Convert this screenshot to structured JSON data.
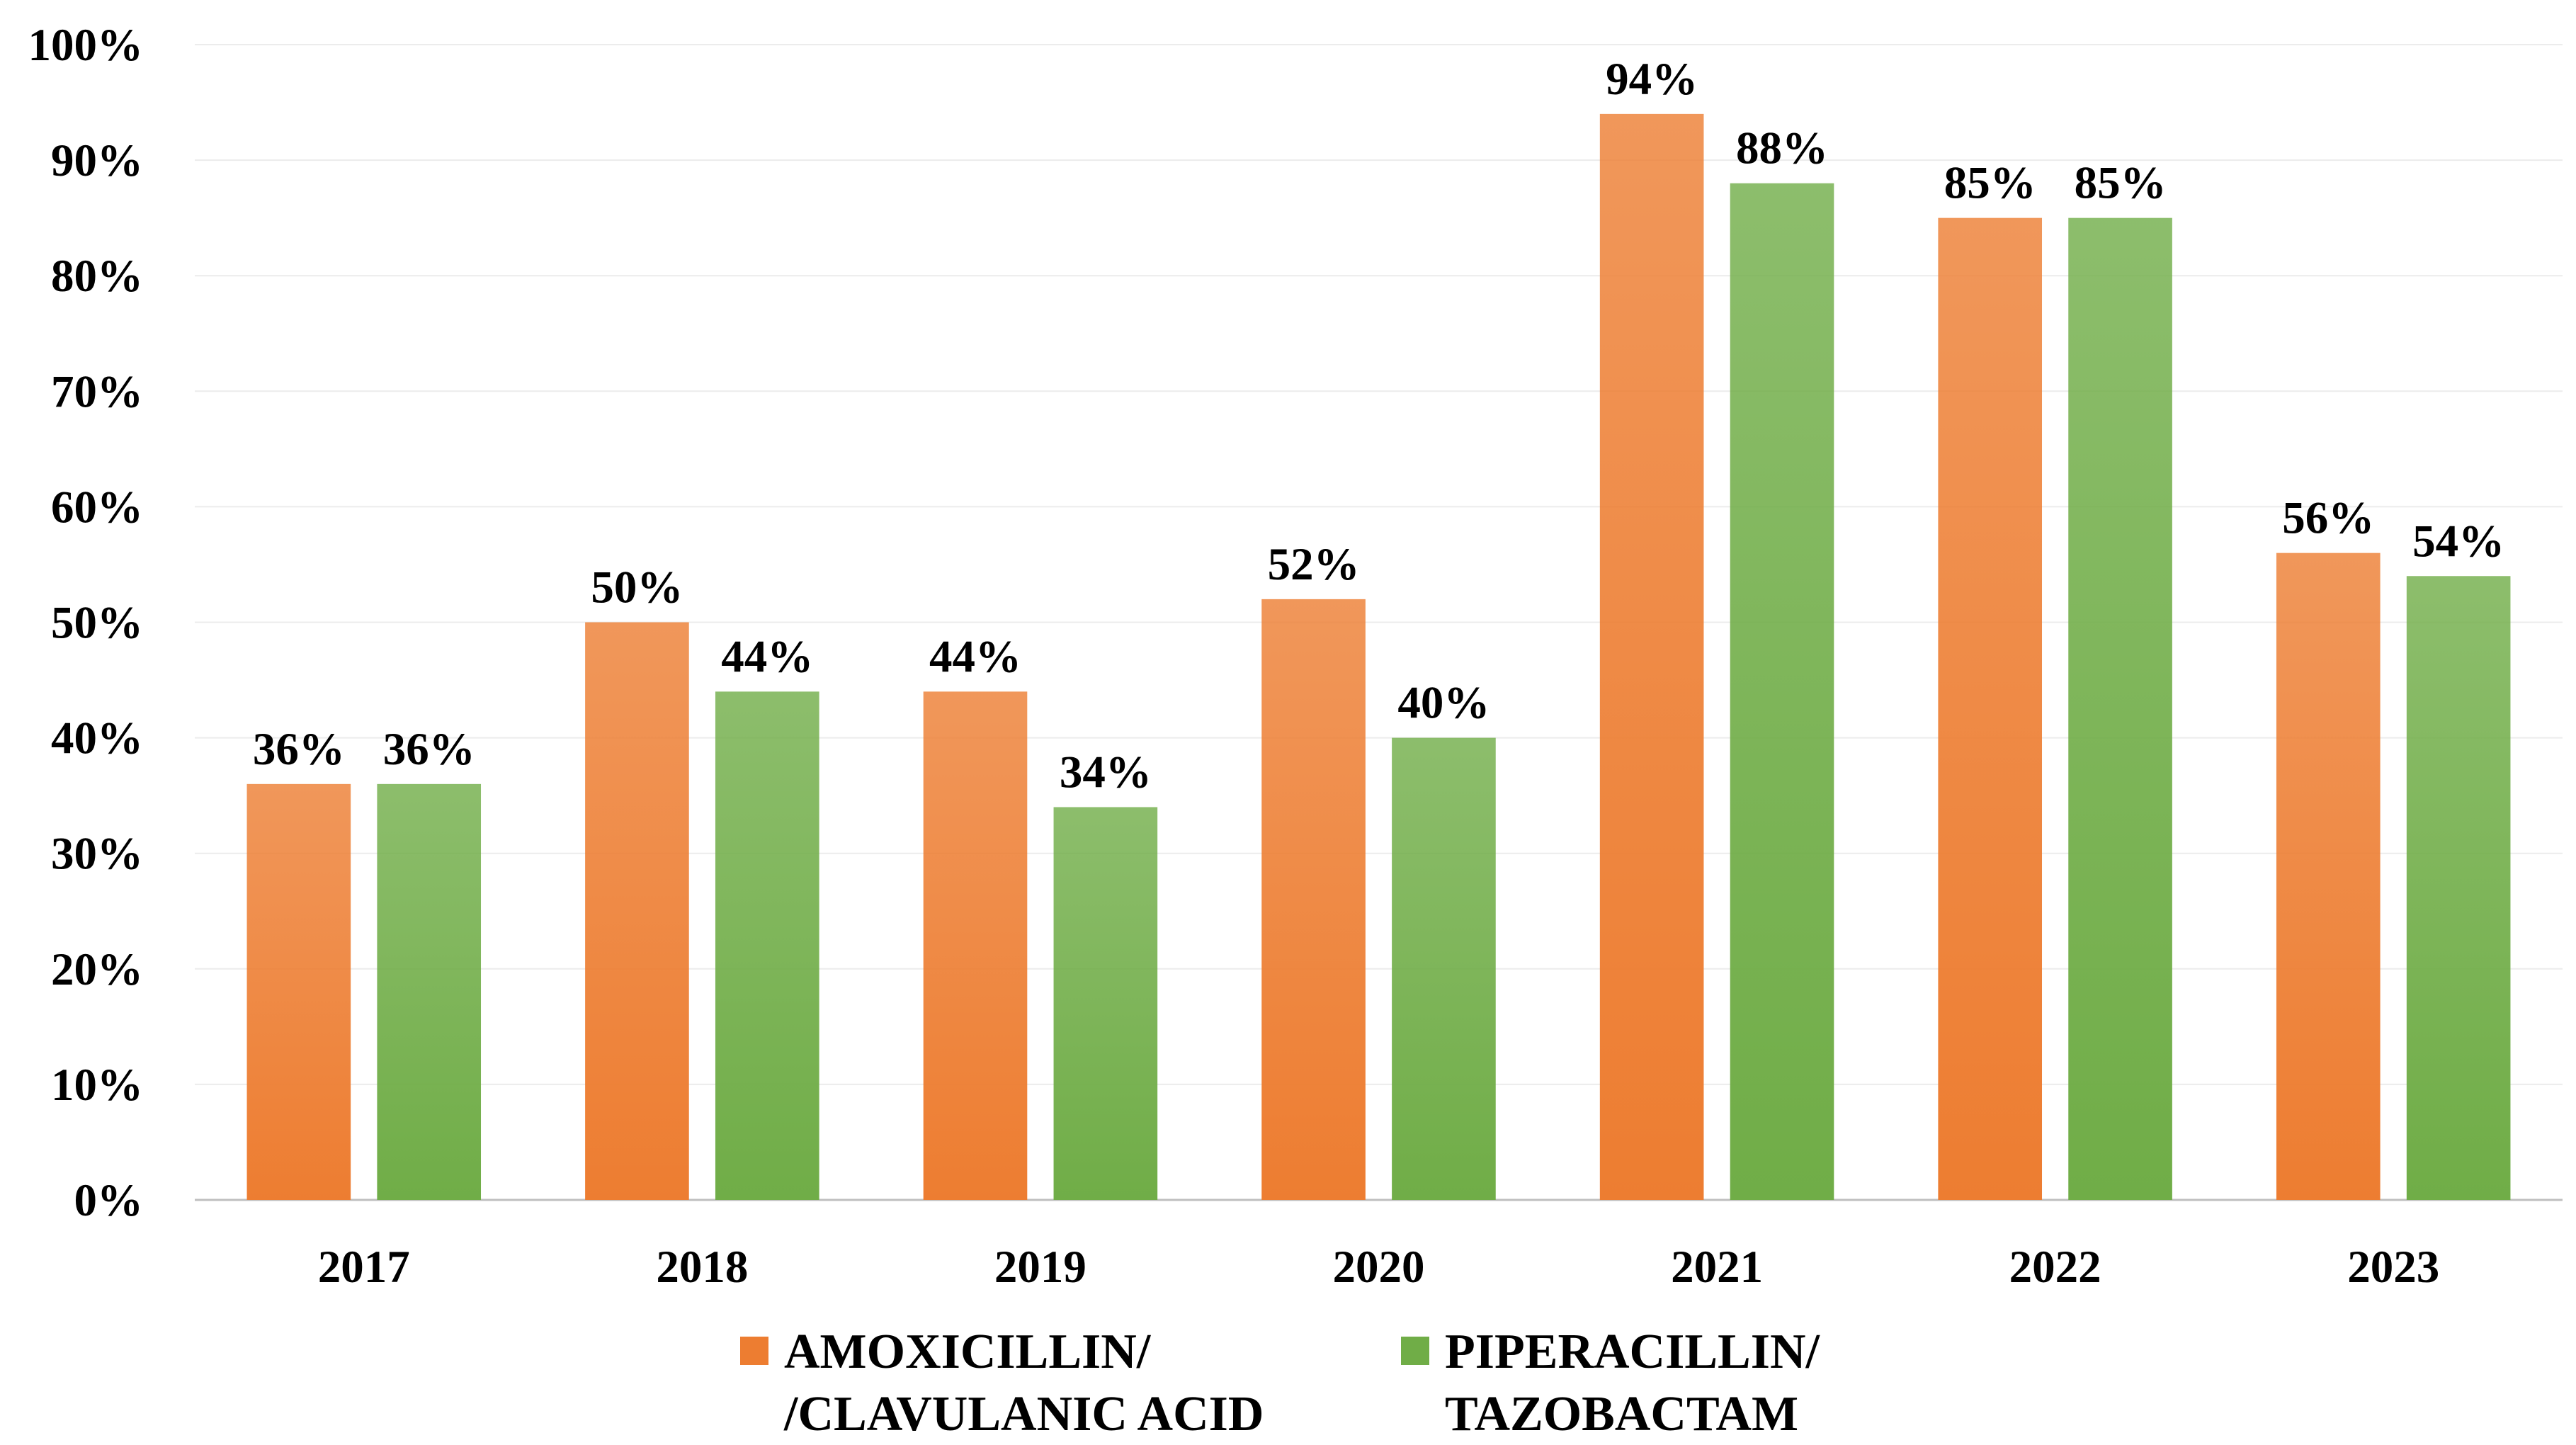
{
  "chart_data": {
    "type": "bar",
    "categories": [
      "2017",
      "2018",
      "2019",
      "2020",
      "2021",
      "2022",
      "2023"
    ],
    "series": [
      {
        "name": "AMOXICILLIN/\n/CLAVULANIC ACID",
        "color": "#ed7d31",
        "values": [
          36,
          50,
          44,
          52,
          94,
          85,
          56
        ],
        "value_labels": [
          "36%",
          "50%",
          "44%",
          "52%",
          "94%",
          "85%",
          "56%"
        ]
      },
      {
        "name": "PIPERACILLIN/\nTAZOBACTAM",
        "color": "#70ad47",
        "values": [
          36,
          44,
          34,
          40,
          88,
          85,
          54
        ],
        "value_labels": [
          "36%",
          "44%",
          "34%",
          "40%",
          "88%",
          "85%",
          "54%"
        ]
      }
    ],
    "ylim": [
      0,
      100
    ],
    "yticks": [
      {
        "value": 0,
        "label": "0%"
      },
      {
        "value": 10,
        "label": "10%"
      },
      {
        "value": 20,
        "label": "20%"
      },
      {
        "value": 30,
        "label": "30%"
      },
      {
        "value": 40,
        "label": "40%"
      },
      {
        "value": 50,
        "label": "50%"
      },
      {
        "value": 60,
        "label": "60%"
      },
      {
        "value": 70,
        "label": "70%"
      },
      {
        "value": 80,
        "label": "80%"
      },
      {
        "value": 90,
        "label": "90%"
      },
      {
        "value": 100,
        "label": "100%"
      }
    ],
    "grid": true
  }
}
